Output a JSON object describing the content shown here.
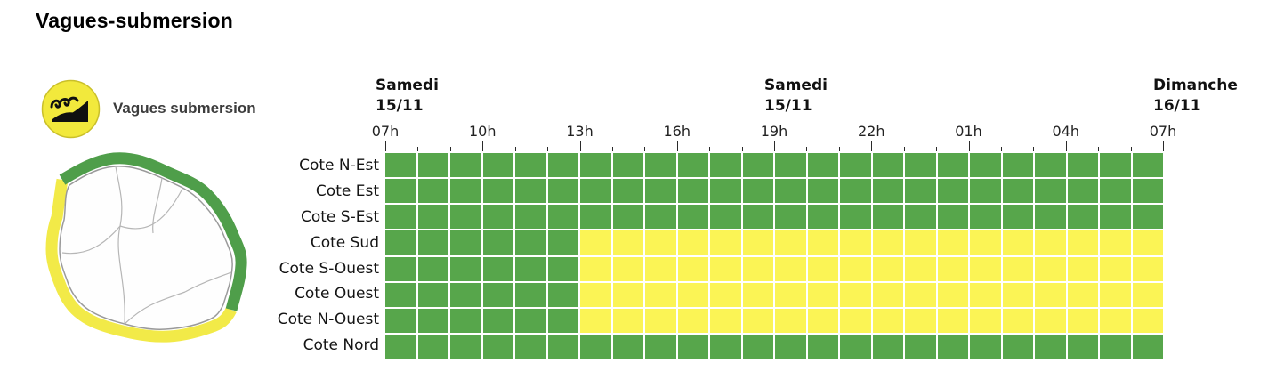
{
  "page": {
    "title": "Vagues-submersion"
  },
  "legend": {
    "label": "Vagues submersion",
    "icon": "waves-submersion-icon",
    "icon_bg": "#f2e93c",
    "icon_border": "#c9bf2a",
    "icon_glyph_color": "#101010"
  },
  "map": {
    "name": "reunion-coast-vigilance-map",
    "green_band": "#4f9e4a",
    "yellow_band": "#f2ea48",
    "island_fill": "#fefefe",
    "island_stroke": "#9a9a9a",
    "inner_border": "#b6b6b6"
  },
  "chart_data": {
    "type": "heatmap",
    "title": "Vagues submersion",
    "x_axis": {
      "hours_span": 24,
      "tick_every_hours": 1,
      "major_tick_every_hours": 3,
      "hour_labels": [
        {
          "text": "07h",
          "hour": 0
        },
        {
          "text": "10h",
          "hour": 3
        },
        {
          "text": "13h",
          "hour": 6
        },
        {
          "text": "16h",
          "hour": 9
        },
        {
          "text": "19h",
          "hour": 12
        },
        {
          "text": "22h",
          "hour": 15
        },
        {
          "text": "01h",
          "hour": 18
        },
        {
          "text": "04h",
          "hour": 21
        },
        {
          "text": "07h",
          "hour": 24
        }
      ],
      "day_labels": [
        {
          "day": "Samedi",
          "date": "15/11",
          "hour": 0
        },
        {
          "day": "Samedi",
          "date": "15/11",
          "hour": 12
        },
        {
          "day": "Dimanche",
          "date": "16/11",
          "hour": 24
        }
      ]
    },
    "levels": {
      "green": "#57a64b",
      "yellow": "#fbf455"
    },
    "rows": [
      {
        "label": "Cote N-Est",
        "segments": [
          {
            "level": "green",
            "from": 0,
            "to": 24
          }
        ]
      },
      {
        "label": "Cote Est",
        "segments": [
          {
            "level": "green",
            "from": 0,
            "to": 24
          }
        ]
      },
      {
        "label": "Cote S-Est",
        "segments": [
          {
            "level": "green",
            "from": 0,
            "to": 24
          }
        ]
      },
      {
        "label": "Cote Sud",
        "segments": [
          {
            "level": "green",
            "from": 0,
            "to": 6
          },
          {
            "level": "yellow",
            "from": 6,
            "to": 24
          }
        ]
      },
      {
        "label": "Cote S-Ouest",
        "segments": [
          {
            "level": "green",
            "from": 0,
            "to": 6
          },
          {
            "level": "yellow",
            "from": 6,
            "to": 24
          }
        ]
      },
      {
        "label": "Cote Ouest",
        "segments": [
          {
            "level": "green",
            "from": 0,
            "to": 6
          },
          {
            "level": "yellow",
            "from": 6,
            "to": 24
          }
        ]
      },
      {
        "label": "Cote N-Ouest",
        "segments": [
          {
            "level": "green",
            "from": 0,
            "to": 6
          },
          {
            "level": "yellow",
            "from": 6,
            "to": 24
          }
        ]
      },
      {
        "label": "Cote Nord",
        "segments": [
          {
            "level": "green",
            "from": 0,
            "to": 24
          }
        ]
      }
    ]
  }
}
